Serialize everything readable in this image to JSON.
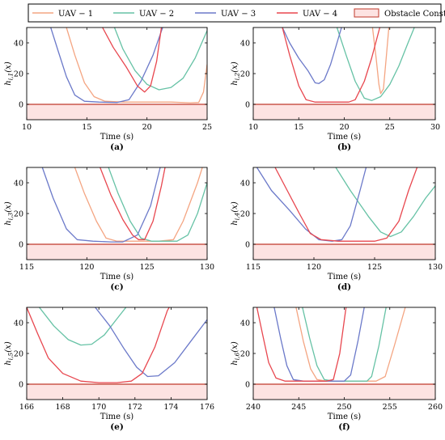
{
  "legend": {
    "entries": [
      {
        "label": "UAV − 1",
        "color": "#f4a582"
      },
      {
        "label": "UAV − 2",
        "color": "#66c2a5"
      },
      {
        "label": "UAV − 3",
        "color": "#6b79c9"
      },
      {
        "label": "UAV − 4",
        "color": "#e8474f"
      },
      {
        "label": "Obstacle Constraint",
        "color": "#fde3e2",
        "edge": "#c0392b"
      }
    ]
  },
  "chart_data": [
    {
      "type": "line",
      "panel_label": "(a)",
      "xlabel": "Time (s)",
      "ylabel": "h",
      "ylabel_sub": "i,1",
      "ylabel_arg": "(x)",
      "xlim": [
        10,
        25
      ],
      "ylim": [
        -10,
        50
      ],
      "xticks": [
        10,
        15,
        20,
        25
      ],
      "yticks": [
        0,
        20,
        40
      ],
      "series": [
        {
          "name": "UAV − 1",
          "color": "#f4a582",
          "points": [
            [
              13.3,
              50
            ],
            [
              14,
              32
            ],
            [
              14.8,
              14
            ],
            [
              15.6,
              5
            ],
            [
              16.5,
              2
            ],
            [
              18,
              1.5
            ],
            [
              20,
              1.5
            ],
            [
              22,
              1.5
            ],
            [
              23.6,
              1
            ],
            [
              24.3,
              1.2
            ],
            [
              24.7,
              8
            ],
            [
              25,
              26
            ]
          ]
        },
        {
          "name": "UAV − 2",
          "color": "#66c2a5",
          "points": [
            [
              17.3,
              50
            ],
            [
              18,
              36
            ],
            [
              19,
              22
            ],
            [
              20,
              13
            ],
            [
              21,
              9.5
            ],
            [
              22,
              11
            ],
            [
              23,
              17
            ],
            [
              24,
              30
            ],
            [
              25,
              48
            ]
          ]
        },
        {
          "name": "UAV − 3",
          "color": "#6b79c9",
          "points": [
            [
              12,
              50
            ],
            [
              12.6,
              35
            ],
            [
              13.3,
              18
            ],
            [
              14,
              6
            ],
            [
              14.8,
              2
            ],
            [
              16,
              1.5
            ],
            [
              17.5,
              1.2
            ],
            [
              18.5,
              3
            ],
            [
              19.5,
              15
            ],
            [
              20.5,
              32
            ],
            [
              21.3,
              50
            ]
          ]
        },
        {
          "name": "UAV − 4",
          "color": "#e8474f",
          "points": [
            [
              16.3,
              50
            ],
            [
              17.2,
              37
            ],
            [
              18.3,
              24
            ],
            [
              19.2,
              12
            ],
            [
              19.8,
              8
            ],
            [
              20.3,
              12
            ],
            [
              20.8,
              28
            ],
            [
              21.2,
              50
            ]
          ]
        }
      ]
    },
    {
      "type": "line",
      "panel_label": "(b)",
      "xlabel": "Time (s)",
      "ylabel": "h",
      "ylabel_sub": "i,2",
      "ylabel_arg": "(x)",
      "xlim": [
        10,
        30
      ],
      "ylim": [
        -10,
        50
      ],
      "xticks": [
        10,
        15,
        20,
        25,
        30
      ],
      "yticks": [
        0,
        20,
        40
      ],
      "series": [
        {
          "name": "UAV − 1",
          "color": "#f4a582",
          "points": [
            [
              23.1,
              50
            ],
            [
              23.5,
              30
            ],
            [
              23.8,
              13
            ],
            [
              24,
              7
            ],
            [
              24.3,
              10
            ],
            [
              24.6,
              30
            ],
            [
              24.9,
              50
            ]
          ]
        },
        {
          "name": "UAV − 2",
          "color": "#66c2a5",
          "points": [
            [
              19.2,
              50
            ],
            [
              20.2,
              32
            ],
            [
              21.2,
              15
            ],
            [
              22.2,
              4
            ],
            [
              23,
              2.5
            ],
            [
              24,
              5
            ],
            [
              25,
              13
            ],
            [
              26,
              25
            ],
            [
              27,
              40
            ],
            [
              27.7,
              50
            ]
          ]
        },
        {
          "name": "UAV − 3",
          "color": "#6b79c9",
          "points": [
            [
              13.2,
              50
            ],
            [
              14,
              40
            ],
            [
              15,
              30
            ],
            [
              16,
              22
            ],
            [
              16.8,
              14
            ],
            [
              17.2,
              13.5
            ],
            [
              17.8,
              16
            ],
            [
              18.5,
              26
            ],
            [
              19.2,
              40
            ],
            [
              19.7,
              50
            ]
          ]
        },
        {
          "name": "UAV − 4",
          "color": "#e8474f",
          "points": [
            [
              13.2,
              50
            ],
            [
              14,
              32
            ],
            [
              15,
              12
            ],
            [
              15.8,
              3
            ],
            [
              16.8,
              1.5
            ],
            [
              19,
              1.5
            ],
            [
              20.5,
              1.5
            ],
            [
              21.2,
              3
            ],
            [
              22.2,
              15
            ],
            [
              23,
              30
            ],
            [
              23.9,
              50
            ]
          ]
        }
      ]
    },
    {
      "type": "line",
      "panel_label": "(c)",
      "xlabel": "Time (s)",
      "ylabel": "h",
      "ylabel_sub": "i,3",
      "ylabel_arg": "(x)",
      "xlim": [
        115,
        130
      ],
      "ylim": [
        -10,
        50
      ],
      "xticks": [
        115,
        120,
        125,
        130
      ],
      "yticks": [
        0,
        20,
        40
      ],
      "series": [
        {
          "name": "UAV − 1",
          "color": "#f4a582",
          "points": [
            [
              119,
              50
            ],
            [
              119.8,
              33
            ],
            [
              120.8,
              15
            ],
            [
              121.6,
              4
            ],
            [
              122.5,
              2
            ],
            [
              126,
              2
            ],
            [
              127.2,
              3
            ],
            [
              128,
              15
            ],
            [
              129.2,
              40
            ],
            [
              129.6,
              50
            ]
          ]
        },
        {
          "name": "UAV − 2",
          "color": "#66c2a5",
          "points": [
            [
              121.8,
              50
            ],
            [
              122.6,
              33
            ],
            [
              123.6,
              15
            ],
            [
              124.5,
              4
            ],
            [
              125.4,
              2
            ],
            [
              127.5,
              2
            ],
            [
              128.4,
              6
            ],
            [
              129.2,
              20
            ],
            [
              130,
              40
            ]
          ]
        },
        {
          "name": "UAV − 3",
          "color": "#6b79c9",
          "points": [
            [
              116.3,
              50
            ],
            [
              117.2,
              30
            ],
            [
              118.3,
              10
            ],
            [
              119.2,
              3
            ],
            [
              120.5,
              2
            ],
            [
              122,
              1.5
            ],
            [
              123,
              1.5
            ],
            [
              124.2,
              6
            ],
            [
              125.3,
              25
            ],
            [
              126.1,
              50
            ]
          ]
        },
        {
          "name": "UAV − 4",
          "color": "#e8474f",
          "points": [
            [
              121.1,
              50
            ],
            [
              122,
              32
            ],
            [
              123,
              16
            ],
            [
              123.8,
              6
            ],
            [
              124.3,
              3
            ],
            [
              124.8,
              3
            ],
            [
              125.5,
              15
            ],
            [
              126.2,
              38
            ],
            [
              126.5,
              50
            ]
          ]
        }
      ]
    },
    {
      "type": "line",
      "panel_label": "(d)",
      "xlabel": "Time (s)",
      "ylabel": "h",
      "ylabel_sub": "i,4",
      "ylabel_arg": "(x)",
      "xlim": [
        115,
        130
      ],
      "ylim": [
        -10,
        50
      ],
      "xticks": [
        115,
        120,
        125,
        130
      ],
      "yticks": [
        0,
        20,
        40
      ],
      "series": [
        {
          "name": "UAV − 1",
          "color": "#f4a582",
          "points": []
        },
        {
          "name": "UAV − 2",
          "color": "#66c2a5",
          "points": [
            [
              121.8,
              50
            ],
            [
              123,
              35
            ],
            [
              124.5,
              18
            ],
            [
              125.5,
              8
            ],
            [
              126.3,
              5
            ],
            [
              127.2,
              8
            ],
            [
              128.2,
              18
            ],
            [
              129.2,
              30
            ],
            [
              130,
              38
            ]
          ]
        },
        {
          "name": "UAV − 3",
          "color": "#6b79c9",
          "points": [
            [
              115.3,
              50
            ],
            [
              116.5,
              35
            ],
            [
              118,
              22
            ],
            [
              119.3,
              10
            ],
            [
              120.4,
              3
            ],
            [
              121.5,
              2
            ],
            [
              122.3,
              3
            ],
            [
              123,
              12
            ],
            [
              123.8,
              35
            ],
            [
              124.3,
              50
            ]
          ]
        },
        {
          "name": "UAV − 4",
          "color": "#e8474f",
          "points": [
            [
              116.8,
              50
            ],
            [
              117.8,
              35
            ],
            [
              118.8,
              20
            ],
            [
              119.7,
              7
            ],
            [
              120.6,
              3
            ],
            [
              122,
              2
            ],
            [
              125,
              2
            ],
            [
              126,
              4
            ],
            [
              127,
              15
            ],
            [
              127.8,
              35
            ],
            [
              128.5,
              50
            ]
          ]
        }
      ]
    },
    {
      "type": "line",
      "panel_label": "(e)",
      "xlabel": "Time (s)",
      "ylabel": "h",
      "ylabel_sub": "i,5",
      "ylabel_arg": "(x)",
      "xlim": [
        166,
        176
      ],
      "ylim": [
        -10,
        50
      ],
      "xticks": [
        166,
        168,
        170,
        172,
        174,
        176
      ],
      "yticks": [
        0,
        20,
        40
      ],
      "series": [
        {
          "name": "UAV − 1",
          "color": "#f4a582",
          "points": []
        },
        {
          "name": "UAV − 2",
          "color": "#66c2a5",
          "points": [
            [
              166.7,
              50
            ],
            [
              167.5,
              38
            ],
            [
              168.3,
              29
            ],
            [
              169,
              25.5
            ],
            [
              169.6,
              26
            ],
            [
              170.3,
              32
            ],
            [
              171.1,
              44
            ],
            [
              171.5,
              50
            ]
          ]
        },
        {
          "name": "UAV − 3",
          "color": "#6b79c9",
          "points": [
            [
              169.8,
              50
            ],
            [
              170.6,
              38
            ],
            [
              171.4,
              23
            ],
            [
              172.1,
              11
            ],
            [
              172.7,
              5
            ],
            [
              173.3,
              5.5
            ],
            [
              174.2,
              14
            ],
            [
              175.1,
              28
            ],
            [
              176,
              42
            ]
          ]
        },
        {
          "name": "UAV − 4",
          "color": "#e8474f",
          "points": [
            [
              166,
              50
            ],
            [
              166.6,
              33
            ],
            [
              167.2,
              17
            ],
            [
              168,
              7
            ],
            [
              169,
              2
            ],
            [
              170,
              1
            ],
            [
              171,
              1
            ],
            [
              171.8,
              2
            ],
            [
              172.4,
              7
            ],
            [
              173.1,
              24
            ],
            [
              173.8,
              48
            ],
            [
              173.9,
              50
            ]
          ]
        }
      ]
    },
    {
      "type": "line",
      "panel_label": "(f)",
      "xlabel": "Time (s)",
      "ylabel": "h",
      "ylabel_sub": "i,6",
      "ylabel_arg": "(x)",
      "xlim": [
        240,
        260
      ],
      "ylim": [
        -10,
        50
      ],
      "xticks": [
        240,
        245,
        250,
        255,
        260
      ],
      "yticks": [
        0,
        20,
        40
      ],
      "series": [
        {
          "name": "UAV − 1",
          "color": "#f4a582",
          "points": [
            [
              244.7,
              50
            ],
            [
              245.5,
              28
            ],
            [
              246.3,
              10
            ],
            [
              247,
              3
            ],
            [
              248,
              2
            ],
            [
              253.5,
              2
            ],
            [
              254.5,
              5
            ],
            [
              255.5,
              25
            ],
            [
              256.7,
              50
            ]
          ]
        },
        {
          "name": "UAV − 2",
          "color": "#66c2a5",
          "points": [
            [
              245.4,
              50
            ],
            [
              246.2,
              30
            ],
            [
              247,
              12
            ],
            [
              247.8,
              3
            ],
            [
              248.8,
              2
            ],
            [
              252.5,
              2
            ],
            [
              253,
              5
            ],
            [
              253.8,
              25
            ],
            [
              254.6,
              50
            ]
          ]
        },
        {
          "name": "UAV − 3",
          "color": "#6b79c9",
          "points": [
            [
              242.3,
              50
            ],
            [
              243,
              30
            ],
            [
              243.7,
              12
            ],
            [
              244.4,
              3
            ],
            [
              245.5,
              2
            ],
            [
              250,
              2
            ],
            [
              250.7,
              6
            ],
            [
              251.5,
              28
            ],
            [
              252.2,
              50
            ]
          ]
        },
        {
          "name": "UAV − 4",
          "color": "#e8474f",
          "points": [
            [
              240.4,
              50
            ],
            [
              241,
              33
            ],
            [
              241.7,
              14
            ],
            [
              242.5,
              4
            ],
            [
              243.5,
              2
            ],
            [
              248,
              2
            ],
            [
              248.8,
              3
            ],
            [
              249.5,
              20
            ],
            [
              250.2,
              50
            ]
          ]
        }
      ]
    }
  ]
}
